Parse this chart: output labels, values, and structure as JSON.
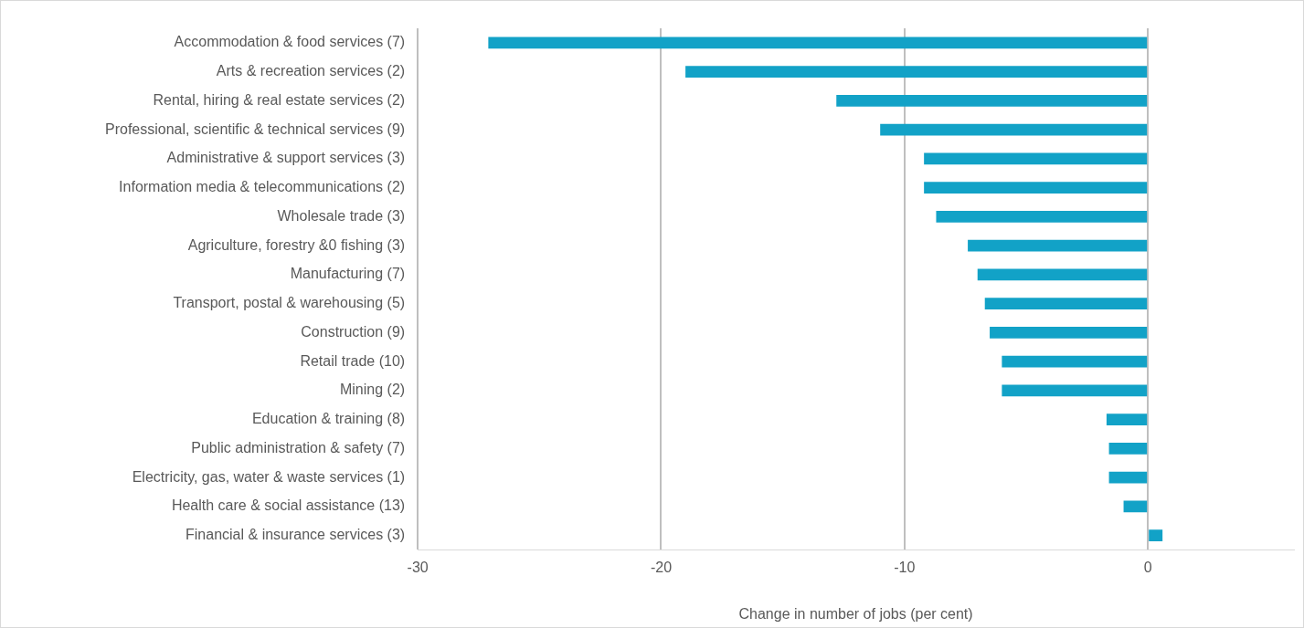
{
  "chart_data": {
    "type": "bar",
    "orientation": "horizontal",
    "xlabel": "Change in number of jobs (per cent)",
    "categories": [
      "Accommodation & food services (7)",
      "Arts & recreation services (2)",
      "Rental, hiring & real estate services (2)",
      "Professional, scientific & technical services (9)",
      "Administrative & support services (3)",
      "Information media & telecommunications (2)",
      "Wholesale trade (3)",
      "Agriculture, forestry &0 fishing (3)",
      "Manufacturing (7)",
      "Transport, postal & warehousing (5)",
      "Construction (9)",
      "Retail trade (10)",
      "Mining (2)",
      "Education & training (8)",
      "Public administration & safety (7)",
      "Electricity, gas, water & waste services (1)",
      "Health care & social assistance (13)",
      "Financial & insurance services (3)"
    ],
    "values": [
      -27.1,
      -19.0,
      -12.8,
      -11.0,
      -9.2,
      -9.2,
      -8.7,
      -7.4,
      -7.0,
      -6.7,
      -6.5,
      -6.0,
      -6.0,
      -1.7,
      -1.6,
      -1.6,
      -1.0,
      0.6
    ],
    "color": "#12a2c7",
    "xlim": [
      -30,
      6
    ],
    "xticks": [
      -30,
      -20,
      -10,
      0
    ],
    "grid": "x"
  }
}
